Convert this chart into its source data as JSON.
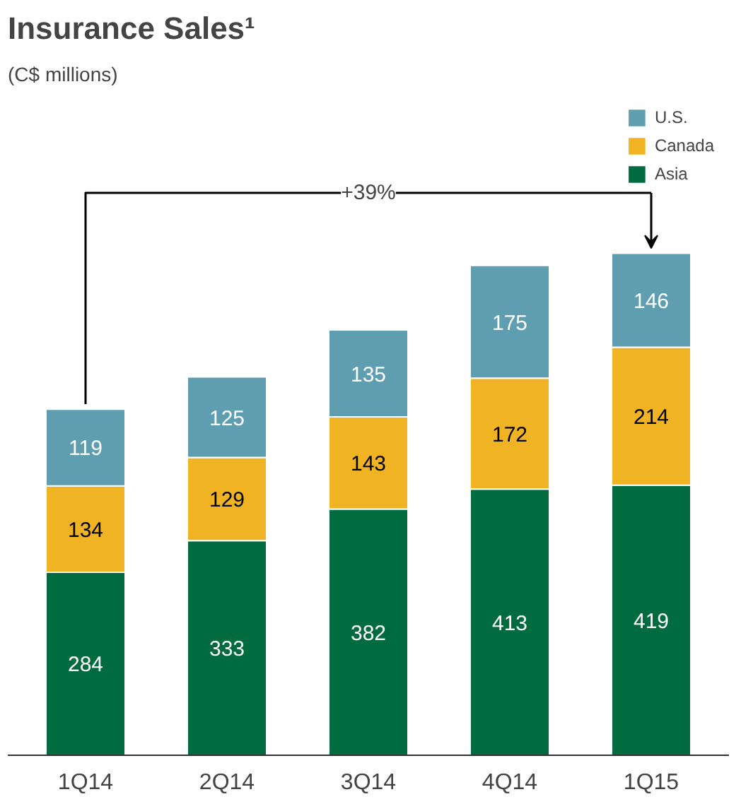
{
  "chart_data": {
    "type": "bar",
    "title": "Insurance Sales¹",
    "subtitle": "(C$ millions)",
    "categories": [
      "1Q14",
      "2Q14",
      "3Q14",
      "4Q14",
      "1Q15"
    ],
    "stacked": true,
    "data_labels": true,
    "legend": "top right",
    "grid": false,
    "series": [
      {
        "name": "Asia",
        "color": "#006b3f",
        "values": [
          284,
          333,
          382,
          413,
          419
        ]
      },
      {
        "name": "Canada",
        "color": "#f0b323",
        "values": [
          134,
          129,
          143,
          172,
          214
        ]
      },
      {
        "name": "U.S.",
        "color": "#5f9eb0",
        "values": [
          119,
          125,
          135,
          175,
          146
        ]
      }
    ],
    "annotations": [
      "+39%"
    ]
  }
}
